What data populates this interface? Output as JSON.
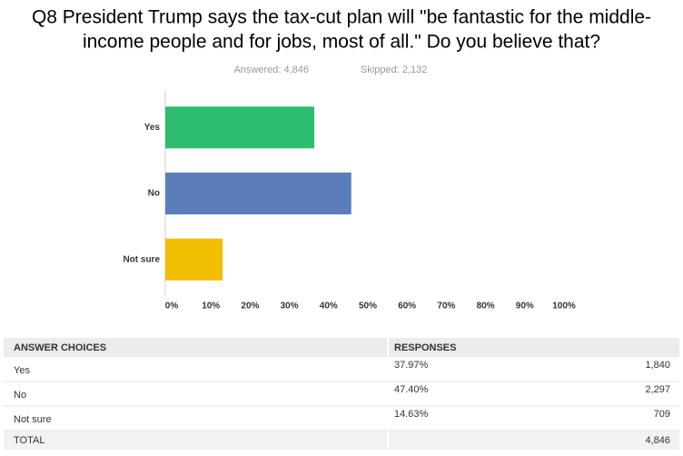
{
  "chart_data": {
    "type": "hbar",
    "title": [
      "Q8 President Trump says the tax-cut plan will \"be fantastic for the middle-",
      "income people and for jobs, most of all.\" Do you believe that?"
    ],
    "answered": "Answered: 4,846",
    "skipped": "Skipped: 2,132",
    "categories": [
      "Yes",
      "No",
      "Not sure"
    ],
    "values": [
      37.97,
      47.4,
      14.63
    ],
    "colors": [
      "#2dbd6e",
      "#5a7cb9",
      "#f2be00"
    ],
    "xlim": [
      0,
      100
    ],
    "xticks": [
      {
        "value": 0,
        "label": "0%"
      },
      {
        "value": 10,
        "label": "10%"
      },
      {
        "value": 20,
        "label": "20%"
      },
      {
        "value": 30,
        "label": "30%"
      },
      {
        "value": 40,
        "label": "40%"
      },
      {
        "value": 50,
        "label": "50%"
      },
      {
        "value": 60,
        "label": "60%"
      },
      {
        "value": 70,
        "label": "70%"
      },
      {
        "value": 80,
        "label": "80%"
      },
      {
        "value": 90,
        "label": "90%"
      },
      {
        "value": 100,
        "label": "100%"
      }
    ],
    "grid": false
  },
  "table": {
    "header": [
      "ANSWER CHOICES",
      "RESPONSES"
    ],
    "rows": [
      [
        "Yes",
        "37.97%",
        "1,840"
      ],
      [
        "No",
        "47.40%",
        "2,297"
      ],
      [
        "Not sure",
        "14.63%",
        "709"
      ]
    ],
    "total": [
      "TOTAL",
      "4,846"
    ]
  }
}
